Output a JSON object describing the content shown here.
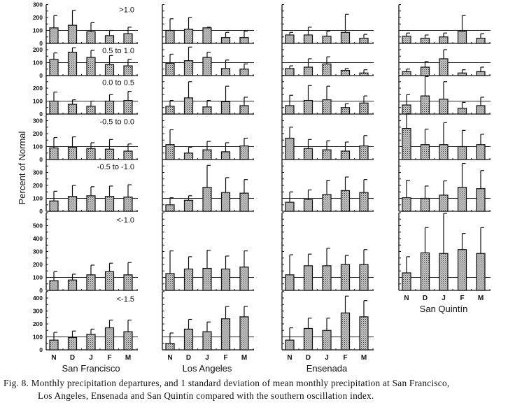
{
  "caption": {
    "line1": "Fig. 8. Monthly precipitation departures, and 1 standard deviation of mean monthly precipitation at San Francisco,",
    "line2": "Los Angeles, Ensenada and San Quintín compared with the southern oscillation index."
  },
  "chart_data": {
    "type": "bar",
    "ylabel": "Percent of Normal",
    "categories": [
      "N",
      "D",
      "J",
      "F",
      "M"
    ],
    "reference_value": 100,
    "rows": [
      {
        "label": ">1.0",
        "ylim": [
          0,
          300
        ],
        "yticks": [
          "0",
          "100",
          "200",
          "300"
        ]
      },
      {
        "label": "0.5 to 1.0",
        "ylim": [
          0,
          250
        ],
        "yticks": [
          "0",
          "100",
          "200"
        ]
      },
      {
        "label": "0.0 to 0.5",
        "ylim": [
          0,
          300
        ],
        "yticks": [
          "0",
          "100",
          "200"
        ]
      },
      {
        "label": "-0.5 to 0.0",
        "ylim": [
          0,
          350
        ],
        "yticks": [
          "0",
          "100",
          "200",
          "300"
        ]
      },
      {
        "label": "-0.5 to -1.0",
        "ylim": [
          0,
          400
        ],
        "yticks": [
          "0",
          "100",
          "200",
          "300"
        ]
      },
      {
        "label": "<-1.0",
        "ylim": [
          0,
          600
        ],
        "yticks": [
          "0",
          "100",
          "200",
          "300",
          "400",
          "500"
        ]
      },
      {
        "label": "<-1.5",
        "ylim": [
          0,
          450
        ],
        "yticks": [
          "0",
          "100",
          "200",
          "300",
          "400"
        ]
      }
    ],
    "stations": [
      {
        "name": "San Francisco",
        "panels": [
          {
            "values": [
              120,
              140,
              90,
              60,
              75
            ],
            "sd_upper": [
              215,
              255,
              160,
              100,
              125
            ]
          },
          {
            "values": [
              125,
              180,
              140,
              85,
              75
            ],
            "sd_upper": [
              175,
              215,
              195,
              155,
              125
            ]
          },
          {
            "values": [
              100,
              75,
              60,
              100,
              105
            ],
            "sd_upper": [
              170,
              110,
              100,
              150,
              175
            ]
          },
          {
            "values": [
              90,
              95,
              85,
              80,
              65
            ],
            "sd_upper": [
              170,
              175,
              130,
              155,
              120
            ]
          },
          {
            "values": [
              80,
              115,
              120,
              115,
              110
            ],
            "sd_upper": [
              155,
              200,
              190,
              195,
              205
            ]
          },
          {
            "values": [
              75,
              80,
              120,
              145,
              120
            ],
            "sd_upper": [
              145,
              125,
              195,
              210,
              215
            ]
          },
          {
            "values": [
              75,
              95,
              120,
              170,
              140
            ],
            "sd_upper": [
              135,
              145,
              160,
              230,
              230
            ]
          }
        ]
      },
      {
        "name": "Los Angeles",
        "panels": [
          {
            "values": [
              100,
              110,
              120,
              45,
              45
            ],
            "sd_upper": [
              190,
              200,
              125,
              85,
              95
            ]
          },
          {
            "values": [
              95,
              115,
              140,
              55,
              50
            ],
            "sd_upper": [
              165,
              220,
              180,
              120,
              90
            ]
          },
          {
            "values": [
              60,
              125,
              55,
              95,
              65
            ],
            "sd_upper": [
              105,
              250,
              105,
              215,
              130
            ]
          },
          {
            "values": [
              115,
              50,
              75,
              60,
              105
            ],
            "sd_upper": [
              230,
              95,
              140,
              130,
              165
            ]
          },
          {
            "values": [
              50,
              85,
              185,
              145,
              140
            ],
            "sd_upper": [
              105,
              120,
              355,
              260,
              245
            ]
          },
          {
            "values": [
              130,
              165,
              170,
              165,
              180
            ],
            "sd_upper": [
              305,
              260,
              310,
              265,
              305
            ]
          },
          {
            "values": [
              50,
              160,
              140,
              240,
              255
            ],
            "sd_upper": [
              130,
              235,
              215,
              335,
              335
            ]
          }
        ]
      },
      {
        "name": "Ensenada",
        "panels": [
          {
            "values": [
              65,
              65,
              55,
              85,
              40
            ],
            "sd_upper": [
              85,
              125,
              95,
              225,
              70
            ]
          },
          {
            "values": [
              55,
              65,
              90,
              40,
              20
            ],
            "sd_upper": [
              75,
              130,
              145,
              55,
              45
            ]
          },
          {
            "values": [
              65,
              105,
              110,
              50,
              85
            ],
            "sd_upper": [
              145,
              220,
              215,
              80,
              140
            ]
          },
          {
            "values": [
              165,
              85,
              75,
              65,
              105
            ],
            "sd_upper": [
              250,
              155,
              145,
              135,
              185
            ]
          },
          {
            "values": [
              70,
              90,
              130,
              160,
              145
            ],
            "sd_upper": [
              150,
              165,
              240,
              265,
              245
            ]
          },
          {
            "values": [
              120,
              190,
              190,
              200,
              200
            ],
            "sd_upper": [
              275,
              280,
              325,
              270,
              315
            ]
          },
          {
            "values": [
              75,
              165,
              150,
              285,
              255
            ],
            "sd_upper": [
              170,
              245,
              245,
              415,
              380
            ]
          }
        ]
      },
      {
        "name": "San Quintín",
        "panels": [
          {
            "values": [
              55,
              40,
              50,
              95,
              40
            ],
            "sd_upper": [
              80,
              65,
              80,
              215,
              75
            ]
          },
          {
            "values": [
              30,
              65,
              130,
              20,
              30
            ],
            "sd_upper": [
              50,
              110,
              200,
              45,
              65
            ]
          },
          {
            "values": [
              70,
              140,
              115,
              45,
              65
            ],
            "sd_upper": [
              150,
              290,
              250,
              90,
              130
            ]
          },
          {
            "values": [
              240,
              115,
              115,
              100,
              115
            ],
            "sd_upper": [
              355,
              235,
              285,
              225,
              195
            ]
          },
          {
            "values": [
              105,
              100,
              125,
              185,
              175
            ],
            "sd_upper": [
              240,
              195,
              235,
              370,
              315
            ]
          },
          {
            "values": [
              135,
              290,
              285,
              315,
              285
            ],
            "sd_upper": [
              260,
              485,
              595,
              440,
              485
            ]
          }
        ]
      }
    ]
  }
}
